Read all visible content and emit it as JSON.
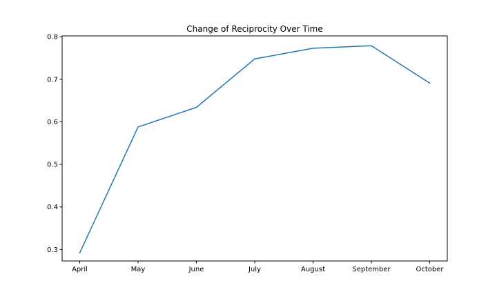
{
  "chart_data": {
    "type": "line",
    "title": "Change of Reciprocity Over Time",
    "xlabel": "",
    "ylabel": "",
    "categories": [
      "April",
      "May",
      "June",
      "July",
      "August",
      "September",
      "October"
    ],
    "series": [
      {
        "values": [
          0.292,
          0.588,
          0.634,
          0.748,
          0.773,
          0.779,
          0.691
        ],
        "color": "#1f77b4"
      }
    ],
    "ylim": [
      0.273,
      0.802
    ],
    "yticks": [
      0.3,
      0.4,
      0.5,
      0.6,
      0.7,
      0.8
    ],
    "ytick_labels": [
      "0.3",
      "0.4",
      "0.5",
      "0.6",
      "0.7",
      "0.8"
    ],
    "grid": false,
    "legend": "none"
  }
}
